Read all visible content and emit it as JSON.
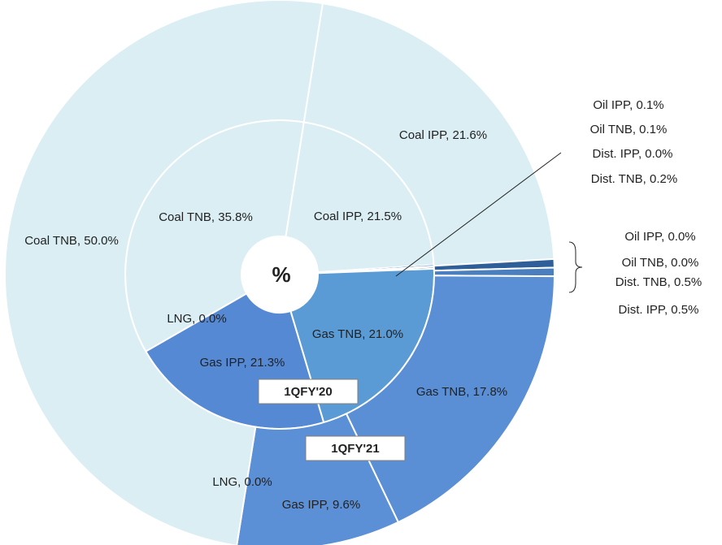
{
  "chart_data": {
    "type": "doughnut",
    "center_label": "%",
    "series": [
      {
        "name": "1QFY'20",
        "colors": [
          "#daeef3",
          "#4a7ebf",
          "#4a7ebf",
          "#4a7ebf",
          "#2e5f99",
          "#5b9bd5",
          "#5589d4",
          "#5589d4",
          "#daeef3"
        ],
        "values": [
          21.5,
          0.1,
          0.1,
          0.0,
          0.2,
          21.0,
          21.3,
          0.0,
          35.8
        ],
        "value_labels": [
          "Coal IPP, 21.5%",
          "Oil IPP, 0.1%",
          "Oil TNB, 0.1%",
          "Dist. IPP, 0.0%",
          "Dist. TNB, 0.2%",
          "Gas TNB, 21.0%",
          "Gas IPP, 21.3%",
          "LNG, 0.0%",
          "Coal TNB, 35.8%"
        ]
      },
      {
        "name": "1QFY'21",
        "colors": [
          "#daeef3",
          "#4a7ebf",
          "#4a7ebf",
          "#2e5f99",
          "#4a7ebf",
          "#5a8fd6",
          "#5b8fd6",
          "#5b8fd6",
          "#daeef3"
        ],
        "values": [
          21.6,
          0.0,
          0.0,
          0.5,
          0.5,
          17.8,
          9.6,
          0.0,
          50.0
        ],
        "value_labels": [
          "Coal IPP, 21.6%",
          "Oil IPP, 0.0%",
          "Oil TNB, 0.0%",
          "Dist. TNB, 0.5%",
          "Dist. IPP, 0.5%",
          "Gas TNB, 17.8%",
          "Gas IPP, 9.6%",
          "LNG, 0.0%",
          "Coal TNB, 50.0%"
        ]
      }
    ]
  }
}
